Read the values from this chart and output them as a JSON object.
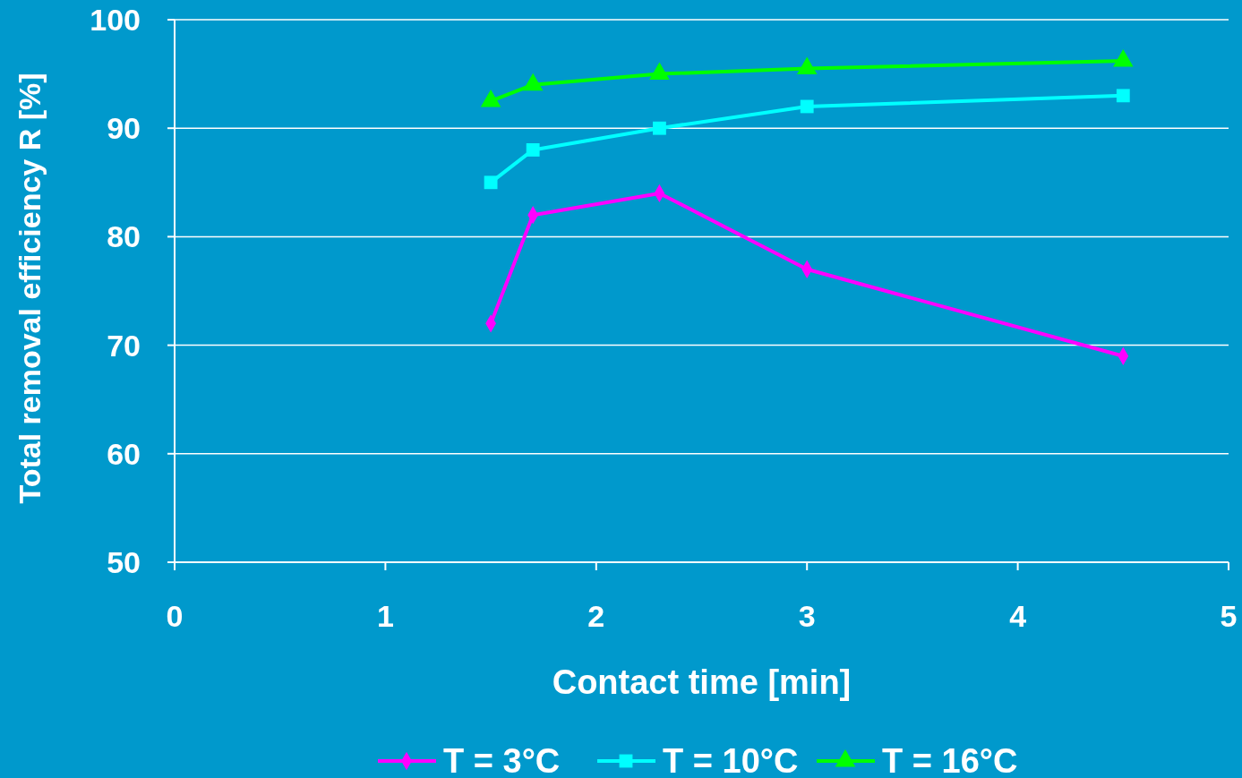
{
  "chart_data": {
    "type": "line",
    "xlabel": "Contact time [min]",
    "ylabel": "Total removal efficiency R [%]",
    "xlim": [
      0,
      5
    ],
    "xticks": [
      0,
      1,
      2,
      3,
      4,
      5
    ],
    "ylim": [
      50,
      100
    ],
    "yticks": [
      50,
      60,
      70,
      80,
      90,
      100
    ],
    "grid": "y",
    "legend": "bottom",
    "series": [
      {
        "name": "T = 3°C",
        "color": "#ff00ff",
        "marker": "diamond",
        "x": [
          1.5,
          1.7,
          2.3,
          3,
          4.5
        ],
        "values": [
          72,
          82,
          84,
          77,
          69
        ]
      },
      {
        "name": "T = 10°C",
        "color": "#00ffff",
        "marker": "square",
        "x": [
          1.5,
          1.7,
          2.3,
          3,
          4.5
        ],
        "values": [
          85,
          88,
          90,
          92,
          93
        ]
      },
      {
        "name": "T = 16°C",
        "color": "#00ff00",
        "marker": "triangle",
        "x": [
          1.5,
          1.7,
          2.3,
          3,
          4.5
        ],
        "values": [
          92.5,
          94,
          95,
          95.5,
          96.2
        ]
      }
    ]
  }
}
